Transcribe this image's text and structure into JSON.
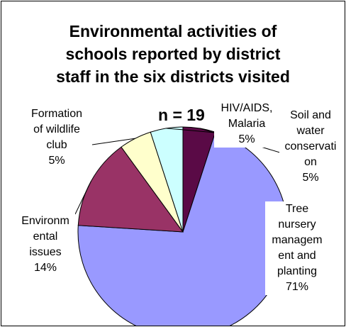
{
  "chart_data": {
    "type": "pie",
    "title": "Environmental activities of schools reported by district staff in the six districts visited",
    "title_lines": [
      "Environmental activities of",
      "schools reported by district",
      "staff in the six districts visited"
    ],
    "subtitle": "n = 19",
    "slices": [
      {
        "label": "Soil and water conservation",
        "label_lines": [
          "Soil and",
          "water",
          "conservati",
          "on"
        ],
        "pct_label": "5%",
        "value": 5,
        "color": "#5a0a46"
      },
      {
        "label": "Tree nursery management and planting",
        "label_lines": [
          "Tree",
          "nursery",
          "managem",
          "ent and",
          "planting"
        ],
        "pct_label": "71%",
        "value": 71,
        "color": "#9999ff"
      },
      {
        "label": "Environmental issues",
        "label_lines": [
          "Environm",
          "ental",
          "issues"
        ],
        "pct_label": "14%",
        "value": 14,
        "color": "#993366"
      },
      {
        "label": "Formation of wildlife club",
        "label_lines": [
          "Formation",
          "of wildlife",
          "club"
        ],
        "pct_label": "5%",
        "value": 5,
        "color": "#ffffcc"
      },
      {
        "label": "HIV/AIDS, Malaria",
        "label_lines": [
          "HIV/AIDS,",
          "Malaria"
        ],
        "pct_label": "5%",
        "value": 5,
        "color": "#ccffff"
      }
    ]
  }
}
